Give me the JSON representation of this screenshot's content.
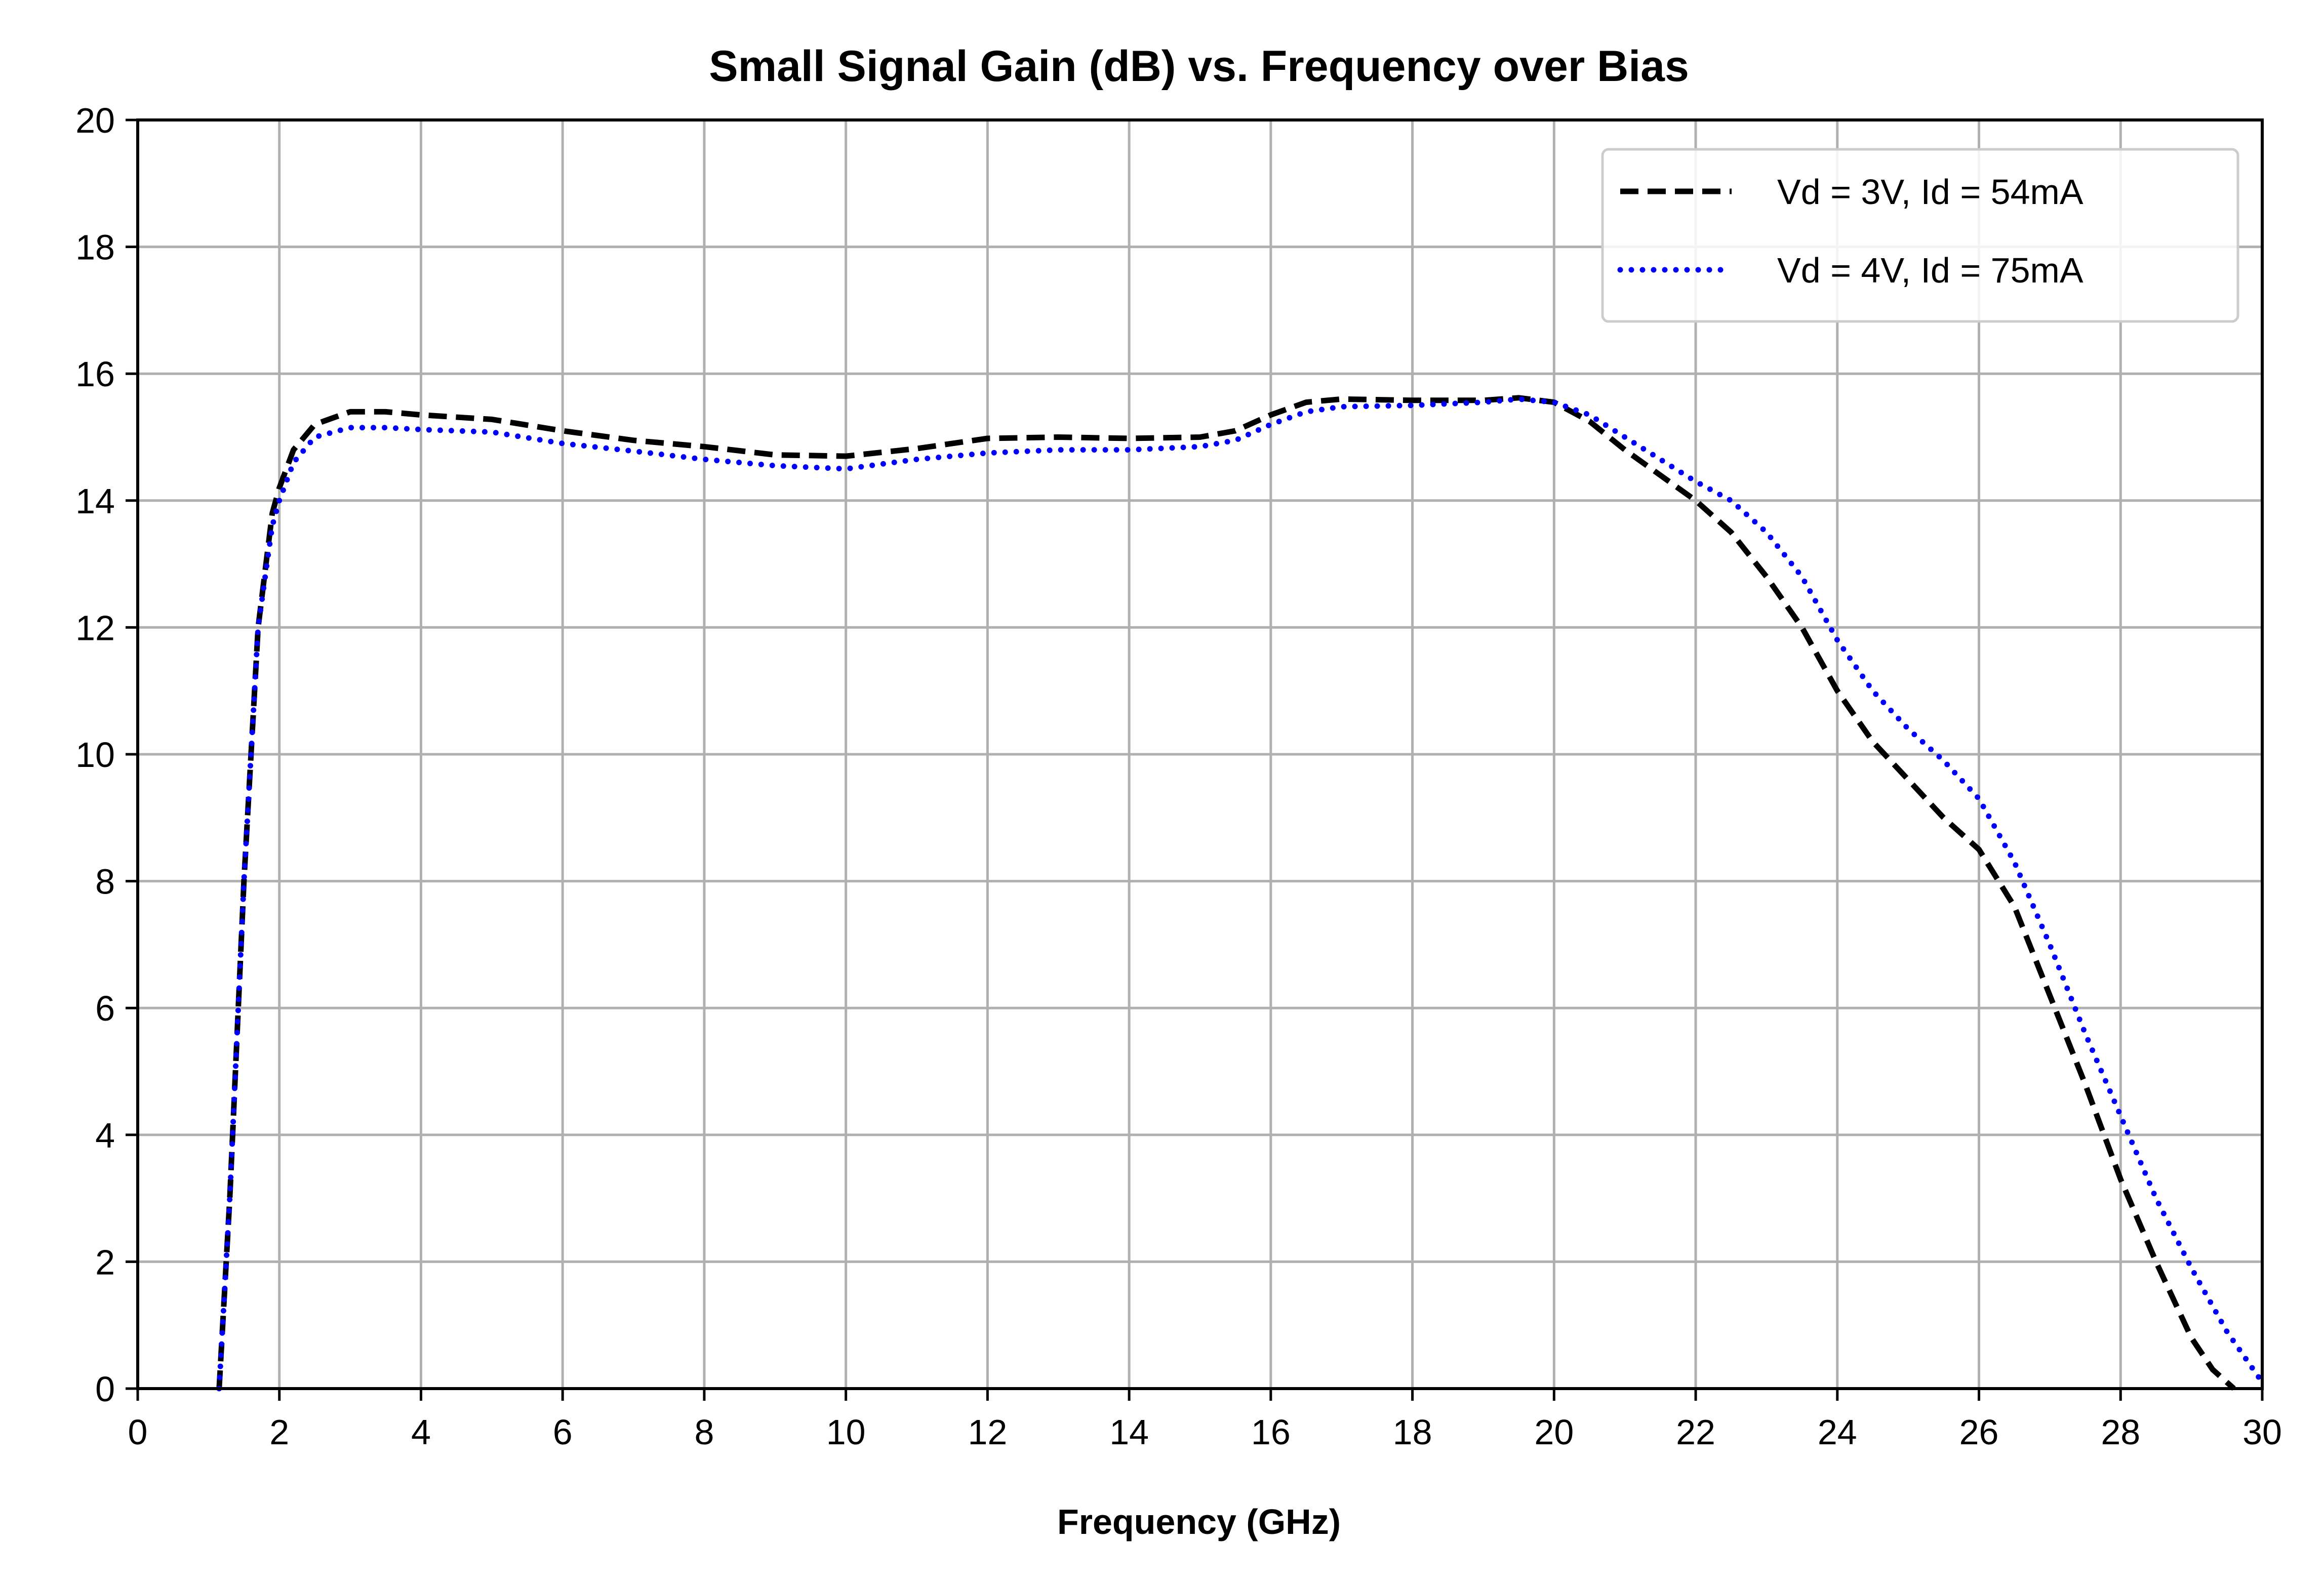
{
  "chart_data": {
    "type": "line",
    "title": "Small Signal Gain (dB) vs. Frequency over Bias",
    "xlabel": "Frequency (GHz)",
    "ylabel": "",
    "xlim": [
      0,
      30
    ],
    "ylim": [
      0,
      20
    ],
    "xticks": [
      0,
      2,
      4,
      6,
      8,
      10,
      12,
      14,
      16,
      18,
      20,
      22,
      24,
      26,
      28,
      30
    ],
    "yticks": [
      0,
      2,
      4,
      6,
      8,
      10,
      12,
      14,
      16,
      18,
      20
    ],
    "grid": true,
    "legend_position": "top-right",
    "series": [
      {
        "name": "Vd = 3V, Id = 54mA",
        "color": "#000000",
        "line_style": "dashed",
        "x": [
          1.15,
          1.3,
          1.5,
          1.7,
          1.9,
          2.0,
          2.2,
          2.5,
          3.0,
          3.5,
          4.0,
          5.0,
          6.0,
          7.0,
          8.0,
          9.0,
          10.0,
          11.0,
          12.0,
          13.0,
          14.0,
          15.0,
          15.5,
          16.0,
          16.5,
          17.0,
          18.0,
          19.0,
          19.5,
          20.0,
          20.5,
          21.0,
          22.0,
          22.5,
          23.0,
          23.5,
          24.0,
          24.5,
          25.0,
          25.5,
          26.0,
          26.5,
          27.0,
          27.5,
          28.0,
          28.5,
          29.0,
          29.3,
          29.6
        ],
        "y": [
          0.0,
          3.0,
          8.0,
          12.0,
          13.8,
          14.2,
          14.8,
          15.2,
          15.4,
          15.4,
          15.35,
          15.28,
          15.1,
          14.95,
          14.85,
          14.72,
          14.7,
          14.82,
          14.98,
          15.0,
          14.98,
          15.0,
          15.1,
          15.35,
          15.55,
          15.6,
          15.58,
          15.58,
          15.62,
          15.55,
          15.25,
          14.8,
          14.0,
          13.5,
          12.8,
          12.0,
          11.0,
          10.2,
          9.6,
          9.0,
          8.5,
          7.6,
          6.2,
          4.8,
          3.3,
          2.0,
          0.8,
          0.3,
          0.0
        ]
      },
      {
        "name": "Vd = 4V, Id = 75mA",
        "color": "#0000ff",
        "line_style": "dotted",
        "x": [
          1.15,
          1.3,
          1.5,
          1.7,
          1.9,
          2.0,
          2.2,
          2.5,
          3.0,
          3.5,
          4.0,
          5.0,
          6.0,
          7.0,
          8.0,
          9.0,
          10.0,
          11.0,
          12.0,
          13.0,
          14.0,
          15.0,
          15.5,
          16.0,
          16.5,
          17.0,
          18.0,
          19.0,
          19.5,
          20.0,
          20.5,
          21.0,
          22.0,
          22.5,
          23.0,
          23.5,
          24.0,
          24.5,
          25.0,
          25.5,
          26.0,
          26.5,
          27.0,
          27.5,
          28.0,
          28.5,
          29.0,
          29.5,
          30.0
        ],
        "y": [
          0.0,
          3.0,
          8.0,
          12.0,
          13.6,
          14.0,
          14.6,
          15.0,
          15.15,
          15.15,
          15.12,
          15.08,
          14.9,
          14.78,
          14.65,
          14.55,
          14.5,
          14.65,
          14.75,
          14.8,
          14.8,
          14.85,
          14.95,
          15.2,
          15.4,
          15.48,
          15.5,
          15.55,
          15.6,
          15.55,
          15.35,
          15.0,
          14.3,
          14.0,
          13.5,
          12.8,
          11.8,
          11.0,
          10.4,
          9.9,
          9.3,
          8.3,
          7.0,
          5.6,
          4.3,
          3.0,
          1.9,
          0.9,
          0.1
        ]
      }
    ]
  }
}
